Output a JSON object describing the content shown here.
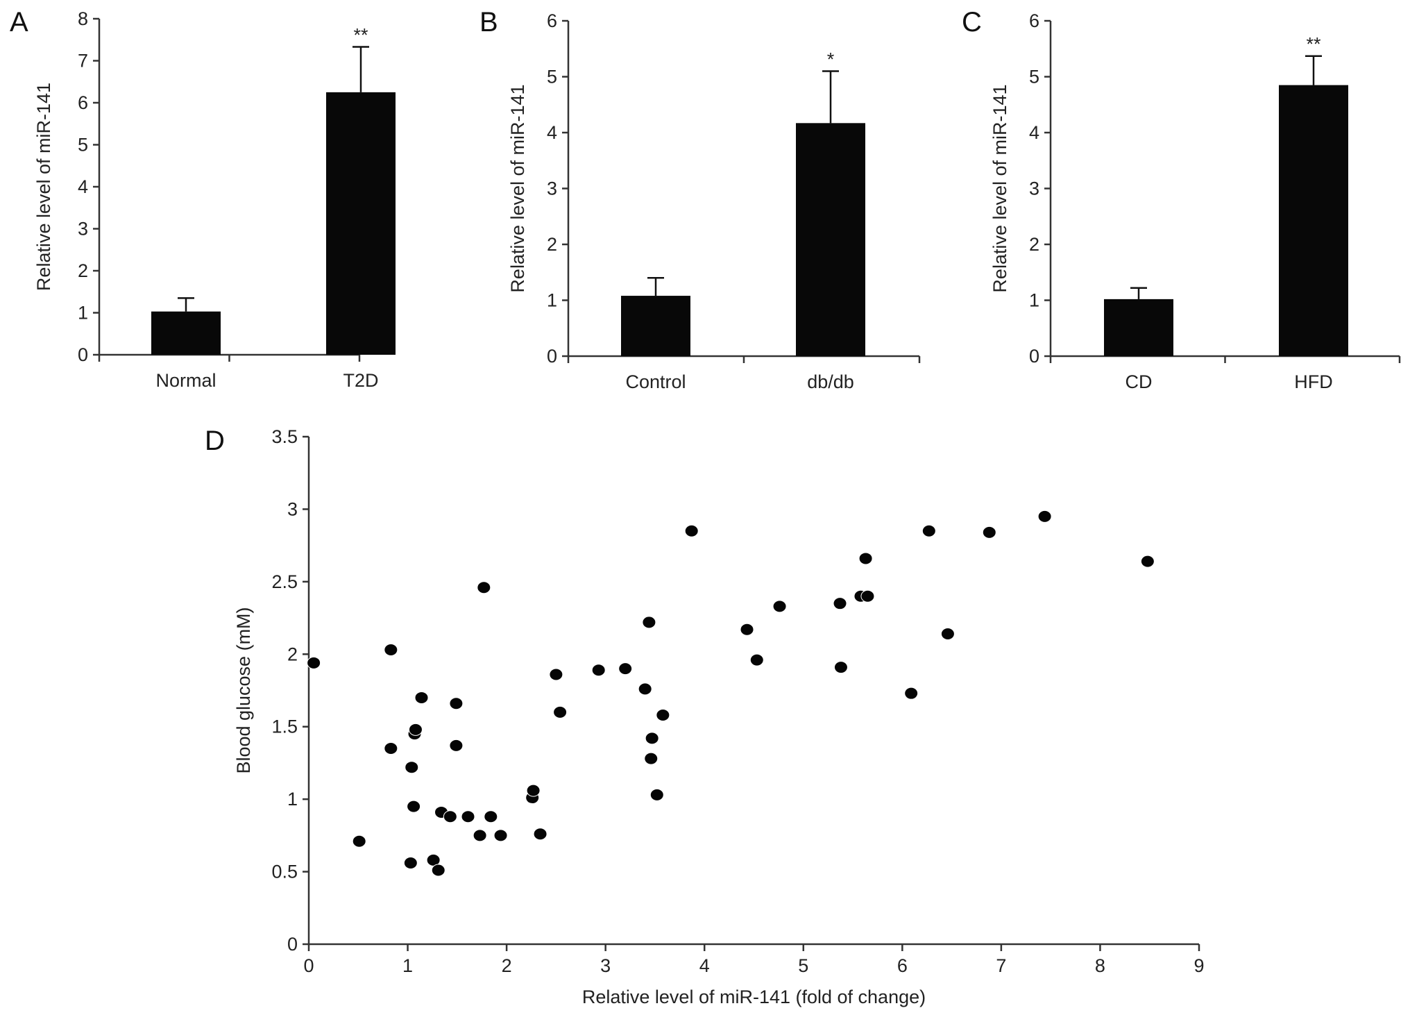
{
  "chart_data": [
    {
      "panel": "A",
      "type": "bar",
      "ylabel": "Relative level of miR-141",
      "ylim": [
        0,
        8
      ],
      "yticks": [
        0,
        1,
        2,
        3,
        4,
        5,
        6,
        7,
        8
      ],
      "categories": [
        "Normal",
        "T2D"
      ],
      "values": [
        1.03,
        6.25
      ],
      "errors": [
        0.32,
        1.08
      ],
      "annotations": [
        "",
        "**"
      ]
    },
    {
      "panel": "B",
      "type": "bar",
      "ylabel": "Relative level of miR-141",
      "ylim": [
        0,
        6
      ],
      "yticks": [
        0,
        1,
        2,
        3,
        4,
        5,
        6
      ],
      "categories": [
        "Control",
        "db/db"
      ],
      "values": [
        1.08,
        4.17
      ],
      "errors": [
        0.32,
        0.93
      ],
      "annotations": [
        "",
        "*"
      ]
    },
    {
      "panel": "C",
      "type": "bar",
      "ylabel": "Relative level of miR-141",
      "ylim": [
        0,
        6
      ],
      "yticks": [
        0,
        1,
        2,
        3,
        4,
        5,
        6
      ],
      "categories": [
        "CD",
        "HFD"
      ],
      "values": [
        1.02,
        4.85
      ],
      "errors": [
        0.2,
        0.52
      ],
      "annotations": [
        "",
        "**"
      ]
    },
    {
      "panel": "D",
      "type": "scatter",
      "xlabel": "Relative level of miR-141 (fold of change)",
      "ylabel": "Blood glucose (mM)",
      "xlim": [
        0,
        9
      ],
      "ylim": [
        0,
        3.5
      ],
      "xticks": [
        0,
        1,
        2,
        3,
        4,
        5,
        6,
        7,
        8,
        9
      ],
      "yticks": [
        0,
        0.5,
        1,
        1.5,
        2,
        2.5,
        3,
        3.5
      ],
      "points": [
        [
          0.05,
          1.94
        ],
        [
          0.51,
          0.71
        ],
        [
          0.83,
          2.03
        ],
        [
          0.83,
          1.35
        ],
        [
          1.04,
          1.22
        ],
        [
          1.07,
          1.45
        ],
        [
          1.08,
          1.48
        ],
        [
          1.06,
          0.95
        ],
        [
          1.14,
          1.7
        ],
        [
          1.03,
          0.56
        ],
        [
          1.26,
          0.58
        ],
        [
          1.31,
          0.51
        ],
        [
          1.34,
          0.91
        ],
        [
          1.43,
          0.88
        ],
        [
          1.49,
          1.66
        ],
        [
          1.49,
          1.37
        ],
        [
          1.61,
          0.88
        ],
        [
          1.73,
          0.75
        ],
        [
          1.77,
          2.46
        ],
        [
          1.84,
          0.88
        ],
        [
          1.94,
          0.75
        ],
        [
          2.26,
          1.01
        ],
        [
          2.27,
          1.06
        ],
        [
          2.34,
          0.76
        ],
        [
          2.5,
          1.86
        ],
        [
          2.54,
          1.6
        ],
        [
          2.93,
          1.89
        ],
        [
          3.2,
          1.9
        ],
        [
          3.4,
          1.76
        ],
        [
          3.44,
          2.22
        ],
        [
          3.46,
          1.28
        ],
        [
          3.47,
          1.42
        ],
        [
          3.52,
          1.03
        ],
        [
          3.58,
          1.58
        ],
        [
          3.87,
          2.85
        ],
        [
          4.43,
          2.17
        ],
        [
          4.53,
          1.96
        ],
        [
          4.76,
          2.33
        ],
        [
          5.37,
          2.35
        ],
        [
          5.38,
          1.91
        ],
        [
          5.58,
          2.4
        ],
        [
          5.65,
          2.4
        ],
        [
          5.63,
          2.66
        ],
        [
          6.09,
          1.73
        ],
        [
          6.27,
          2.85
        ],
        [
          6.46,
          2.14
        ],
        [
          6.88,
          2.84
        ],
        [
          7.44,
          2.95
        ],
        [
          8.48,
          2.64
        ]
      ]
    }
  ]
}
